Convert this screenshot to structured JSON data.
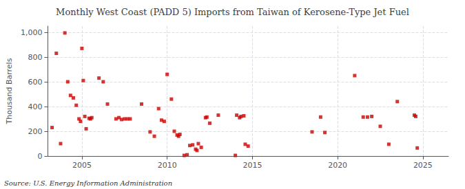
{
  "chart_data": {
    "type": "scatter",
    "title": "Monthly West Coast (PADD 5) Imports from Taiwan of Kerosene-Type Jet Fuel",
    "y_label": "Thousand Barrels",
    "annotations": [
      "Source: U.S. Energy Information Administration"
    ],
    "x": [
      2003.25,
      2003.5,
      2003.75,
      2004.0,
      2004.17,
      2004.33,
      2004.5,
      2004.67,
      2004.83,
      2004.92,
      2005.0,
      2005.08,
      2005.17,
      2005.25,
      2005.42,
      2005.5,
      2005.58,
      2006.0,
      2006.25,
      2006.5,
      2007.0,
      2007.17,
      2007.33,
      2007.5,
      2007.67,
      2007.83,
      2008.5,
      2009.0,
      2009.25,
      2009.5,
      2009.67,
      2009.83,
      2010.0,
      2010.25,
      2010.42,
      2010.58,
      2010.67,
      2010.75,
      2011.0,
      2011.17,
      2011.33,
      2011.5,
      2011.67,
      2011.75,
      2011.83,
      2012.0,
      2012.25,
      2012.33,
      2012.5,
      2013.0,
      2014.0,
      2014.08,
      2014.25,
      2014.33,
      2014.5,
      2014.58,
      2014.75,
      2018.5,
      2019.0,
      2019.25,
      2021.0,
      2021.5,
      2021.75,
      2022.0,
      2022.5,
      2023.0,
      2023.5,
      2024.5,
      2024.58,
      2024.67
    ],
    "values": [
      230,
      830,
      100,
      995,
      600,
      490,
      470,
      410,
      300,
      280,
      870,
      610,
      320,
      220,
      305,
      300,
      310,
      630,
      600,
      420,
      300,
      310,
      295,
      300,
      300,
      300,
      420,
      195,
      160,
      383,
      290,
      280,
      660,
      460,
      200,
      170,
      160,
      175,
      5,
      10,
      85,
      90,
      55,
      45,
      100,
      70,
      310,
      315,
      265,
      330,
      5,
      330,
      310,
      320,
      325,
      95,
      80,
      195,
      315,
      190,
      650,
      315,
      315,
      320,
      240,
      95,
      440,
      330,
      320,
      65
    ],
    "color": "#CC0000",
    "marker": "square",
    "xlim": [
      2003.0,
      2026.5
    ],
    "xticks": [
      2005,
      2010,
      2015,
      2020,
      2025
    ],
    "ylim": [
      0,
      1050
    ],
    "yticks": [
      0,
      200,
      400,
      600,
      800,
      {
        "value": 1000,
        "label": "1,000"
      }
    ],
    "grid": true
  }
}
